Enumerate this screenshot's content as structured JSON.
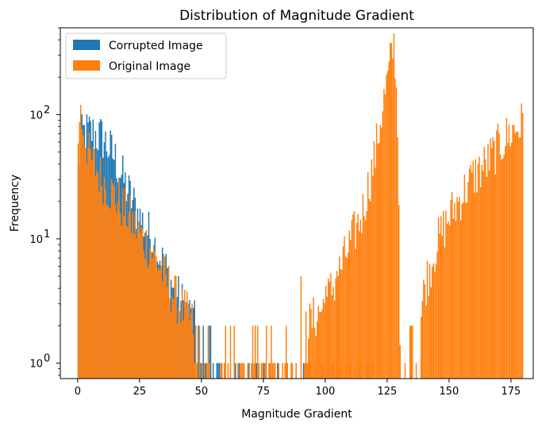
{
  "chart_data": {
    "type": "bar",
    "subtype": "histogram",
    "title": "Distribution of Magnitude Gradient",
    "xlabel": "Magnitude Gradient",
    "ylabel": "Frequency",
    "xlim": [
      -7,
      184
    ],
    "ylim": [
      0.75,
      500
    ],
    "y_scale": "log",
    "bin_width": 0.5,
    "grid": false,
    "legend_position": "top-left",
    "x_ticks": [
      {
        "value": 0,
        "label": "0"
      },
      {
        "value": 25,
        "label": "25"
      },
      {
        "value": 50,
        "label": "50"
      },
      {
        "value": 75,
        "label": "75"
      },
      {
        "value": 100,
        "label": "100"
      },
      {
        "value": 125,
        "label": "125"
      },
      {
        "value": 150,
        "label": "150"
      },
      {
        "value": 175,
        "label": "175"
      }
    ],
    "y_ticks": [
      {
        "value": 1,
        "base": "10",
        "exp": "0"
      },
      {
        "value": 10,
        "base": "10",
        "exp": "1"
      },
      {
        "value": 100,
        "base": "10",
        "exp": "2"
      }
    ],
    "series": [
      {
        "name": "Corrupted Image",
        "color": "#1f77b4",
        "profile": [
          [
            0,
            30
          ],
          [
            1,
            50
          ],
          [
            2,
            70
          ],
          [
            5,
            72
          ],
          [
            10,
            65
          ],
          [
            15,
            45
          ],
          [
            20,
            25
          ],
          [
            25,
            15
          ],
          [
            30,
            10
          ],
          [
            35,
            6
          ],
          [
            40,
            3.5
          ],
          [
            45,
            2.5
          ],
          [
            50,
            1.6
          ],
          [
            55,
            1.2
          ],
          [
            57,
            1.0
          ],
          [
            60,
            0.9
          ]
        ],
        "sparse_unit_bars": [
          54.5,
          56.5,
          63.5,
          65,
          69,
          72,
          75,
          77.5,
          80.5,
          91,
          93.5,
          98.5,
          102.5,
          104.5,
          116.5
        ],
        "range": [
          0,
          60
        ]
      },
      {
        "name": "Original Image",
        "color": "#ff7f0e",
        "profile": [
          [
            0,
            40
          ],
          [
            0.5,
            95
          ],
          [
            1,
            110
          ],
          [
            2,
            80
          ],
          [
            5,
            45
          ],
          [
            10,
            30
          ],
          [
            15,
            22
          ],
          [
            20,
            16
          ],
          [
            25,
            11
          ],
          [
            30,
            8
          ],
          [
            35,
            5
          ],
          [
            40,
            3.2
          ],
          [
            45,
            2.3
          ],
          [
            50,
            1.6
          ],
          [
            52,
            1.3
          ],
          [
            55,
            1.1
          ],
          [
            58,
            1.0
          ],
          [
            78,
            1.0
          ],
          [
            85,
            1.3
          ],
          [
            90,
            1.7
          ],
          [
            95,
            2.2
          ],
          [
            100,
            3.0
          ],
          [
            105,
            5.0
          ],
          [
            110,
            9
          ],
          [
            115,
            16
          ],
          [
            120,
            45
          ],
          [
            123,
            110
          ],
          [
            125,
            180
          ],
          [
            127,
            320
          ],
          [
            128,
            380
          ],
          [
            129.5,
            60
          ],
          [
            130.5,
            0.7
          ],
          [
            137,
            1.2
          ],
          [
            140,
            4
          ],
          [
            145,
            9
          ],
          [
            150,
            15
          ],
          [
            155,
            22
          ],
          [
            160,
            32
          ],
          [
            165,
            40
          ],
          [
            170,
            55
          ],
          [
            175,
            72
          ],
          [
            180,
            85
          ]
        ],
        "sparse_unit_bars": [
          58,
          61.5,
          67,
          68.5,
          70,
          73,
          77,
          79,
          81,
          82.5,
          84,
          86.5,
          88,
          91.5,
          92.5,
          94,
          95.5,
          97,
          99,
          101,
          103,
          106,
          108,
          110,
          112,
          114,
          117,
          119,
          132,
          134,
          136.5
        ],
        "sparse_mid_bars": [
          [
            90,
            5
          ],
          [
            100,
            4.2
          ],
          [
            104.5,
            5.5
          ],
          [
            92,
            2.6
          ]
        ],
        "range": [
          0,
          180.5
        ]
      }
    ]
  }
}
